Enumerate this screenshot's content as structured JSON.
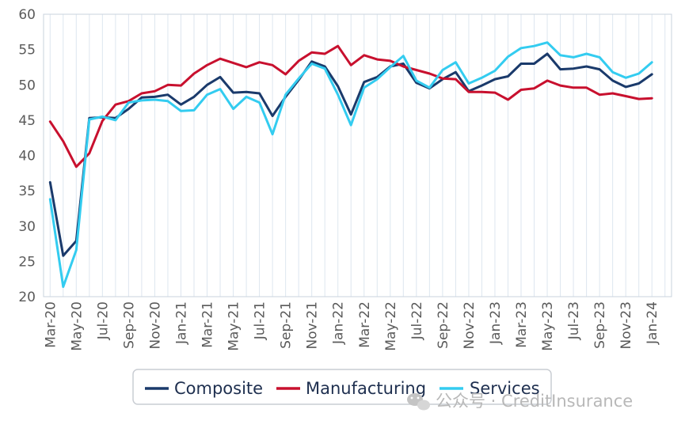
{
  "chart_data": {
    "type": "line",
    "title": "",
    "xlabel": "",
    "ylabel": "",
    "ylim": [
      20,
      60
    ],
    "yticks": [
      20,
      25,
      30,
      35,
      40,
      45,
      50,
      55,
      60
    ],
    "grid": "vertical",
    "legend_position": "bottom",
    "x": [
      "Mar-20",
      "Apr-20",
      "May-20",
      "Jun-20",
      "Jul-20",
      "Aug-20",
      "Sep-20",
      "Oct-20",
      "Nov-20",
      "Dec-20",
      "Jan-21",
      "Feb-21",
      "Mar-21",
      "Apr-21",
      "May-21",
      "Jun-21",
      "Jul-21",
      "Aug-21",
      "Sep-21",
      "Oct-21",
      "Nov-21",
      "Dec-21",
      "Jan-22",
      "Feb-22",
      "Mar-22",
      "Apr-22",
      "May-22",
      "Jun-22",
      "Jul-22",
      "Aug-22",
      "Sep-22",
      "Oct-22",
      "Nov-22",
      "Dec-22",
      "Jan-23",
      "Feb-23",
      "Mar-23",
      "Apr-23",
      "May-23",
      "Jun-23",
      "Jul-23",
      "Aug-23",
      "Sep-23",
      "Oct-23",
      "Nov-23",
      "Dec-23",
      "Jan-24",
      "Feb-24"
    ],
    "x_tick_labels": [
      "Mar-20",
      "May-20",
      "Jul-20",
      "Sep-20",
      "Nov-20",
      "Jan-21",
      "Mar-21",
      "May-21",
      "Jul-21",
      "Sep-21",
      "Nov-21",
      "Jan-22",
      "Mar-22",
      "May-22",
      "Jul-22",
      "Sep-22",
      "Nov-22",
      "Jan-23",
      "Mar-23",
      "May-23",
      "Jul-23",
      "Sep-23",
      "Nov-23",
      "Jan-24"
    ],
    "series": [
      {
        "name": "Composite",
        "color": "#1a3a6b",
        "values": [
          36.2,
          25.8,
          27.9,
          45.3,
          45.4,
          45.3,
          46.6,
          48.2,
          48.3,
          48.6,
          47.2,
          48.3,
          50.0,
          51.1,
          48.9,
          49.0,
          48.8,
          45.6,
          48.3,
          50.7,
          53.3,
          52.6,
          49.8,
          45.8,
          50.4,
          51.1,
          52.6,
          53.0,
          50.3,
          49.5,
          50.8,
          51.8,
          49.1,
          49.9,
          50.8,
          51.2,
          53.0,
          53.0,
          54.4,
          52.2,
          52.3,
          52.6,
          52.2,
          50.6,
          49.7,
          50.2,
          51.5,
          null
        ]
      },
      {
        "name": "Manufacturing",
        "color": "#c8102e",
        "values": [
          44.8,
          42.0,
          38.4,
          40.3,
          44.9,
          47.2,
          47.7,
          48.8,
          49.1,
          50.0,
          49.9,
          51.6,
          52.8,
          53.7,
          53.1,
          52.5,
          53.2,
          52.8,
          51.5,
          53.4,
          54.6,
          54.4,
          55.5,
          52.8,
          54.2,
          53.6,
          53.4,
          52.6,
          52.1,
          51.6,
          50.9,
          50.8,
          49.0,
          49.0,
          48.9,
          47.9,
          49.3,
          49.5,
          50.6,
          49.9,
          49.6,
          49.6,
          48.6,
          48.8,
          48.4,
          48.0,
          48.1,
          null
        ]
      },
      {
        "name": "Services",
        "color": "#33ccf0",
        "values": [
          33.8,
          21.4,
          26.6,
          45.1,
          45.5,
          45.0,
          47.5,
          47.8,
          47.9,
          47.7,
          46.3,
          46.4,
          48.6,
          49.4,
          46.6,
          48.3,
          47.5,
          43.0,
          48.6,
          50.9,
          53.0,
          52.3,
          48.6,
          44.3,
          49.6,
          50.8,
          52.5,
          54.1,
          50.6,
          49.6,
          52.1,
          53.2,
          50.2,
          51.0,
          52.0,
          54.0,
          55.2,
          55.5,
          56.0,
          54.2,
          53.9,
          54.4,
          53.9,
          51.8,
          51.0,
          51.6,
          53.2,
          null
        ]
      }
    ]
  },
  "watermark": {
    "icon": "wechat-icon",
    "text": "公众号 · CreditInsurance"
  }
}
